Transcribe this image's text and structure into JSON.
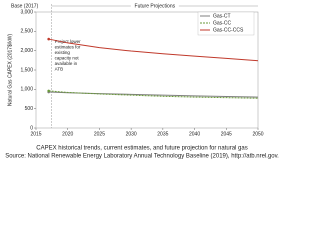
{
  "chart_data": {
    "type": "line",
    "base_label": "Base (2017)",
    "projection_label": "Future Projections",
    "y_label": "Natural Gas CAPEX (2017$/kW)",
    "annotation": [
      "Project lower",
      "estimates for",
      "existing",
      "capacity not",
      "available in",
      "ATB"
    ],
    "caption": "CAPEX historical trends, current estimates, and future projection for natural gas",
    "source": "Source: National Renewable Energy Laboratory Annual Technology Baseline (2019), http://atb.nrel.gov.",
    "x": [
      2017,
      2020,
      2025,
      2030,
      2035,
      2040,
      2045,
      2050
    ],
    "series": [
      {
        "name": "Gas-CT",
        "color": "#7f7f7f",
        "values": [
          930,
          910,
          890,
          870,
          850,
          830,
          815,
          800
        ]
      },
      {
        "name": "Gas-CC",
        "color": "#6a9a3a",
        "values": [
          960,
          920,
          880,
          850,
          820,
          800,
          785,
          770
        ]
      },
      {
        "name": "Gas-CC-CCS",
        "color": "#c0392b",
        "values": [
          2300,
          2200,
          2080,
          1990,
          1920,
          1860,
          1800,
          1740
        ]
      }
    ],
    "xlim": [
      2015,
      2050
    ],
    "xticks": [
      2015,
      2020,
      2025,
      2030,
      2035,
      2040,
      2045,
      2050
    ],
    "ylim": [
      0,
      3000
    ],
    "yticks": [
      0,
      500,
      {
        "value": 1000,
        "label": "1,000"
      },
      {
        "value": 1500,
        "label": "1,500"
      },
      {
        "value": 2000,
        "label": "2,000"
      },
      {
        "value": 2500,
        "label": "2,500"
      },
      {
        "value": 3000,
        "label": "3,000"
      }
    ],
    "legend": "upper right"
  }
}
